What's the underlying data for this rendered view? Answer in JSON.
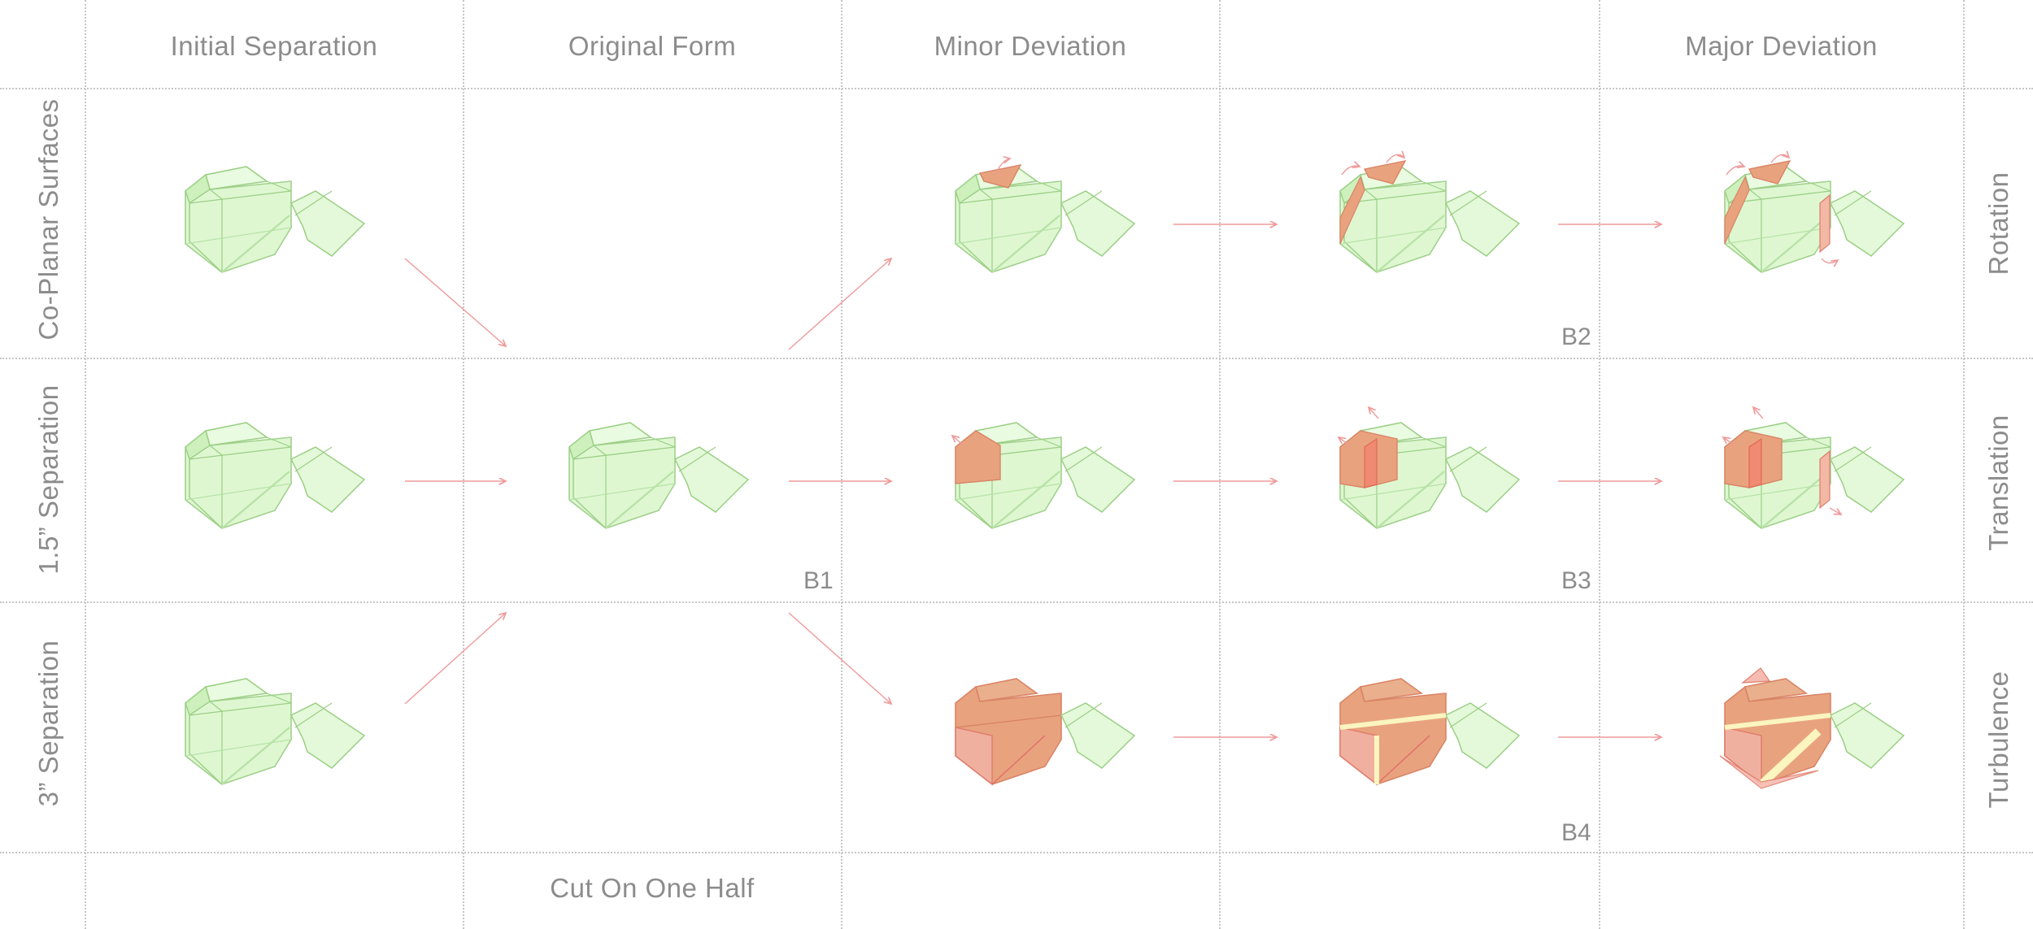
{
  "column_headers": [
    {
      "label": "Initial Separation"
    },
    {
      "label": "Original Form"
    },
    {
      "label": "Minor Deviation"
    },
    {
      "label": ""
    },
    {
      "label": "Major Deviation"
    }
  ],
  "row_labels_left": [
    {
      "label": "Co-Planar Surfaces"
    },
    {
      "label": "1.5” Separation"
    },
    {
      "label": "3” Separation"
    }
  ],
  "row_labels_right": [
    {
      "label": "Rotation"
    },
    {
      "label": "Translation"
    },
    {
      "label": "Turbulence"
    }
  ],
  "footer": {
    "label": "Cut On One Half"
  },
  "codes": [
    {
      "label": "B1"
    },
    {
      "label": "B2"
    },
    {
      "label": "B3"
    },
    {
      "label": "B4"
    }
  ],
  "colors": {
    "grid": "#c6c6c6",
    "text": "#8c8c8c",
    "green_fill": "#ddf7cf",
    "green_stroke": "#9bcf86",
    "orange_fill": "#e8a37e",
    "red_fill": "#f08a72",
    "pink_fill": "#f6bcb2",
    "yellow_fill": "#fbf5c0",
    "arrow": "#ef9a9a"
  }
}
